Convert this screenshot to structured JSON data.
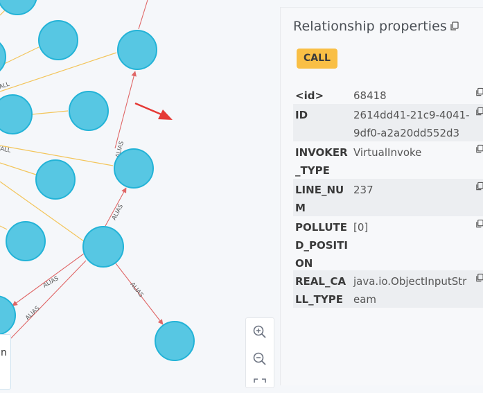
{
  "panel": {
    "title": "Relationship properties",
    "badge": "CALL",
    "properties": [
      {
        "key": "<id>",
        "value": "68418"
      },
      {
        "key": "ID",
        "value": "2614dd41-21c9-4041-9df0-a2a20dd552d3"
      },
      {
        "key": "INVOKER_TYPE",
        "value": "VirtualInvoke"
      },
      {
        "key": "LINE_NUM",
        "value": "237"
      },
      {
        "key": "POLLUTED_POSITION",
        "value": "[0]"
      },
      {
        "key": "REAL_CALL_TYPE",
        "value": "java.io.ObjectInputStream"
      }
    ]
  },
  "graph": {
    "edge_label_call": "CALL",
    "edge_label_alias": "ALIAS"
  },
  "bottom_card": {
    "text": "n"
  },
  "colors": {
    "node_fill": "#57c7e3",
    "call_edge": "#f3c55b",
    "alias_edge": "#e06666",
    "badge": "#f9bf45",
    "annotation_arrow": "#e53935"
  },
  "icons": [
    "copy-icon",
    "zoom-in-icon",
    "zoom-out-icon",
    "fit-icon",
    "arrow-annotation"
  ]
}
